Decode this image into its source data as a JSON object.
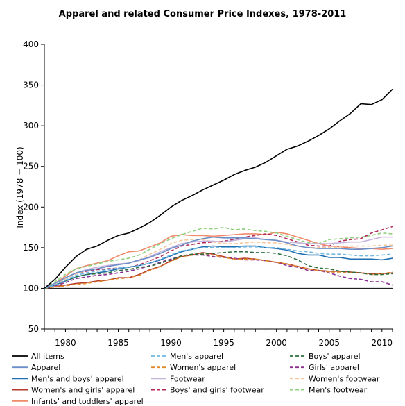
{
  "chart_data": {
    "type": "line",
    "title": "Apparel and related Consumer Price Indexes, 1978-2011",
    "xlabel": "",
    "ylabel": "Index (1978 = 100)",
    "xlim": [
      1978,
      2011
    ],
    "ylim": [
      50,
      400
    ],
    "x_ticks": [
      1980,
      1985,
      1990,
      1995,
      2000,
      2005,
      2010
    ],
    "y_ticks": [
      50,
      100,
      150,
      200,
      250,
      300,
      350,
      400
    ],
    "reference_line": 100,
    "grid": false,
    "legend_position": "bottom",
    "x": [
      1978,
      1979,
      1980,
      1981,
      1982,
      1983,
      1984,
      1985,
      1986,
      1987,
      1988,
      1989,
      1990,
      1991,
      1992,
      1993,
      1994,
      1995,
      1996,
      1997,
      1998,
      1999,
      2000,
      2001,
      2002,
      2003,
      2004,
      2005,
      2006,
      2007,
      2008,
      2009,
      2010,
      2011
    ],
    "series": [
      {
        "name": "All items",
        "color": "#000000",
        "dash": "solid",
        "values": [
          100,
          111,
          126,
          139,
          148,
          152,
          159,
          165,
          168,
          174,
          181,
          190,
          200,
          208,
          214,
          221,
          227,
          233,
          240,
          245,
          249,
          255,
          263,
          271,
          275,
          281,
          288,
          296,
          306,
          315,
          327,
          326,
          332,
          345
        ]
      },
      {
        "name": "Men's apparel",
        "color": "#6fb7e0",
        "dash": "dashed",
        "values": [
          100,
          104,
          110,
          116,
          119,
          121,
          123,
          125,
          126,
          128,
          131,
          136,
          141,
          146,
          148,
          150,
          150,
          150,
          150,
          151,
          151,
          150,
          150,
          148,
          146,
          145,
          143,
          142,
          142,
          141,
          140,
          140,
          141,
          142
        ]
      },
      {
        "name": "Boys' apparel",
        "color": "#2e6e3f",
        "dash": "dashed",
        "values": [
          100,
          104,
          109,
          114,
          117,
          118,
          119,
          122,
          123,
          126,
          127,
          131,
          135,
          140,
          142,
          142,
          143,
          144,
          145,
          145,
          144,
          144,
          143,
          140,
          135,
          128,
          125,
          124,
          121,
          120,
          119,
          117,
          117,
          118
        ]
      },
      {
        "name": "Apparel",
        "color": "#6d8fc8",
        "dash": "solid",
        "values": [
          100,
          106,
          113,
          119,
          122,
          124,
          127,
          129,
          131,
          135,
          138,
          143,
          149,
          153,
          158,
          161,
          163,
          162,
          162,
          162,
          161,
          160,
          159,
          156,
          152,
          150,
          149,
          149,
          149,
          148,
          148,
          149,
          150,
          152
        ]
      },
      {
        "name": "Women's apparel",
        "color": "#e08a2c",
        "dash": "dashed",
        "values": [
          100,
          102,
          103,
          105,
          106,
          108,
          110,
          112,
          113,
          116,
          122,
          127,
          133,
          139,
          141,
          143,
          141,
          138,
          136,
          136,
          136,
          134,
          132,
          130,
          127,
          124,
          122,
          120,
          120,
          119,
          119,
          117,
          118,
          120
        ]
      },
      {
        "name": "Girls' apparel",
        "color": "#8a2f92",
        "dash": "dashed",
        "values": [
          100,
          103,
          107,
          112,
          114,
          116,
          117,
          119,
          121,
          124,
          128,
          132,
          136,
          140,
          141,
          141,
          139,
          138,
          137,
          135,
          135,
          134,
          132,
          128,
          126,
          122,
          122,
          119,
          115,
          112,
          111,
          108,
          108,
          104
        ]
      },
      {
        "name": "Men's and boys' apparel",
        "color": "#1f6fb2",
        "dash": "solid",
        "values": [
          100,
          104,
          109,
          114,
          117,
          119,
          121,
          124,
          126,
          128,
          131,
          135,
          140,
          145,
          148,
          151,
          152,
          151,
          151,
          152,
          152,
          150,
          149,
          147,
          143,
          141,
          141,
          138,
          138,
          136,
          136,
          136,
          135,
          137
        ]
      },
      {
        "name": "Footwear",
        "color": "#c4b3db",
        "dash": "solid",
        "values": [
          100,
          106,
          113,
          119,
          123,
          126,
          128,
          130,
          131,
          134,
          139,
          145,
          150,
          155,
          157,
          158,
          158,
          157,
          159,
          161,
          162,
          160,
          159,
          157,
          156,
          155,
          155,
          155,
          156,
          157,
          157,
          160,
          163,
          163
        ]
      },
      {
        "name": "Women's footwear",
        "color": "#f6c79a",
        "dash": "dashed",
        "values": [
          100,
          105,
          112,
          118,
          122,
          126,
          128,
          130,
          131,
          135,
          142,
          148,
          155,
          159,
          160,
          160,
          157,
          155,
          155,
          156,
          157,
          156,
          156,
          154,
          152,
          150,
          150,
          150,
          151,
          152,
          152,
          152,
          153,
          153
        ]
      },
      {
        "name": "Women's and girls' apparel",
        "color": "#b53a2a",
        "dash": "solid",
        "values": [
          100,
          102,
          104,
          106,
          107,
          109,
          110,
          113,
          113,
          117,
          123,
          127,
          134,
          139,
          141,
          144,
          142,
          139,
          136,
          137,
          136,
          134,
          132,
          130,
          127,
          124,
          122,
          121,
          121,
          120,
          119,
          118,
          118,
          119
        ]
      },
      {
        "name": "Boys' and girls' footwear",
        "color": "#b3285a",
        "dash": "dashed",
        "values": [
          100,
          105,
          112,
          118,
          121,
          123,
          124,
          125,
          126,
          129,
          134,
          139,
          146,
          152,
          154,
          156,
          157,
          158,
          160,
          163,
          165,
          167,
          165,
          161,
          157,
          153,
          152,
          152,
          158,
          160,
          161,
          168,
          172,
          176
        ]
      },
      {
        "name": "Men's footwear",
        "color": "#8fd07f",
        "dash": "dashed",
        "values": [
          100,
          108,
          117,
          124,
          127,
          130,
          133,
          135,
          137,
          141,
          148,
          155,
          161,
          166,
          170,
          174,
          173,
          175,
          172,
          173,
          171,
          170,
          168,
          164,
          160,
          156,
          155,
          160,
          161,
          162,
          163,
          165,
          168,
          167
        ]
      },
      {
        "name": "Infants' and toddlers' apparel",
        "color": "#f08a6a",
        "dash": "solid",
        "values": [
          100,
          106,
          115,
          124,
          128,
          131,
          134,
          140,
          145,
          146,
          151,
          156,
          164,
          166,
          165,
          165,
          164,
          165,
          166,
          167,
          167,
          166,
          169,
          167,
          163,
          159,
          155,
          152,
          151,
          150,
          149,
          149,
          148,
          149
        ]
      }
    ]
  }
}
